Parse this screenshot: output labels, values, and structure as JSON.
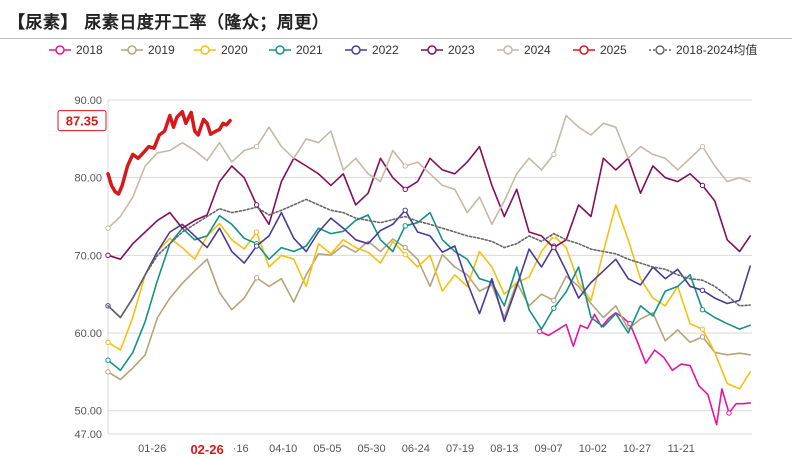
{
  "title": "【尿素】 尿素日度开工率（隆众；周更）",
  "chart_data": {
    "type": "line",
    "title": "【尿素】 尿素日度开工率（隆众；周更）",
    "xlabel": "",
    "ylabel": "",
    "ylim": [
      47,
      90
    ],
    "y_ticks": [
      "90.00",
      "80.00",
      "70.00",
      "60.00",
      "50.00",
      "47.00"
    ],
    "y_tick_values": [
      90,
      80,
      70,
      60,
      50,
      47
    ],
    "x_ticks": [
      "01-26",
      "02-26",
      "·16",
      "04-10",
      "05-05",
      "05-30",
      "06-24",
      "07-19",
      "08-13",
      "09-07",
      "10-02",
      "10-27",
      "11-21"
    ],
    "x_tick_day": [
      26,
      57,
      76,
      100,
      125,
      150,
      175,
      200,
      225,
      250,
      275,
      300,
      325
    ],
    "x_domain_day": [
      1,
      365
    ],
    "highlight_tick": "02-26",
    "callout": {
      "label": "87.35",
      "value": 87.35
    },
    "series": [
      {
        "name": "2018",
        "color": "#e6159b",
        "dash": "",
        "markers": true,
        "x": [
          245,
          250,
          255,
          260,
          264,
          268,
          272,
          276,
          280,
          284,
          288,
          292,
          296,
          300,
          305,
          310,
          315,
          320,
          325,
          330,
          335,
          340,
          345,
          348,
          352,
          356,
          360,
          364
        ],
        "y": [
          60.2,
          59.7,
          60.4,
          61.1,
          58.3,
          61.0,
          60.6,
          62.4,
          60.8,
          61.9,
          62.6,
          62.0,
          61.2,
          59.0,
          56.1,
          57.8,
          56.9,
          55.2,
          56.0,
          55.8,
          53.2,
          52.1,
          48.2,
          52.8,
          49.7,
          50.9,
          50.9,
          51.0
        ]
      },
      {
        "name": "2019",
        "color": "#b5a47a",
        "dash": "",
        "markers": true,
        "x": [
          1,
          8,
          15,
          22,
          29,
          36,
          43,
          50,
          57,
          64,
          71,
          78,
          85,
          92,
          99,
          106,
          113,
          120,
          127,
          134,
          141,
          148,
          155,
          162,
          169,
          176,
          183,
          190,
          197,
          204,
          211,
          218,
          225,
          232,
          239,
          246,
          253,
          260,
          267,
          274,
          281,
          288,
          295,
          302,
          309,
          316,
          323,
          330,
          337,
          344,
          351,
          358,
          364
        ],
        "y": [
          55.0,
          54.0,
          55.5,
          57.2,
          62.0,
          64.5,
          66.4,
          68.0,
          69.5,
          65.2,
          63.0,
          64.5,
          67.1,
          66.0,
          67.0,
          64.0,
          67.5,
          70.2,
          70.0,
          71.3,
          70.4,
          71.8,
          70.5,
          72.1,
          71.0,
          69.5,
          66.0,
          70.1,
          68.5,
          67.5,
          65.4,
          66.2,
          62.0,
          66.5,
          63.5,
          65.0,
          64.2,
          67.3,
          66.0,
          63.8,
          62.0,
          63.5,
          60.5,
          61.8,
          62.6,
          59.0,
          60.4,
          58.8,
          59.5,
          57.5,
          57.2,
          57.4,
          57.2
        ]
      },
      {
        "name": "2020",
        "color": "#f5c012",
        "dash": "",
        "markers": true,
        "x": [
          1,
          8,
          15,
          22,
          29,
          36,
          43,
          50,
          57,
          64,
          71,
          78,
          85,
          92,
          99,
          106,
          113,
          120,
          127,
          134,
          141,
          148,
          155,
          162,
          169,
          176,
          183,
          190,
          197,
          204,
          211,
          218,
          225,
          232,
          239,
          246,
          253,
          260,
          267,
          274,
          281,
          288,
          295,
          302,
          309,
          316,
          323,
          330,
          337,
          344,
          351,
          358,
          364
        ],
        "y": [
          58.8,
          57.8,
          62.0,
          67.5,
          70.5,
          72.2,
          71.0,
          69.5,
          72.5,
          74.1,
          72.0,
          70.8,
          73.0,
          68.5,
          70.0,
          69.5,
          66.0,
          71.5,
          70.2,
          72.0,
          71.0,
          70.4,
          69.0,
          71.8,
          70.1,
          68.5,
          70.0,
          65.4,
          67.5,
          66.0,
          70.5,
          68.5,
          65.0,
          66.5,
          67.2,
          70.5,
          72.5,
          71.0,
          66.5,
          64.2,
          70.5,
          76.5,
          72.0,
          67.0,
          64.5,
          63.5,
          66.0,
          61.2,
          60.5,
          57.5,
          53.5,
          52.8,
          55.0
        ]
      },
      {
        "name": "2021",
        "color": "#139385",
        "dash": "",
        "markers": true,
        "x": [
          1,
          8,
          15,
          22,
          29,
          36,
          43,
          50,
          57,
          64,
          71,
          78,
          85,
          92,
          99,
          106,
          113,
          120,
          127,
          134,
          141,
          148,
          155,
          162,
          169,
          176,
          183,
          190,
          197,
          204,
          211,
          218,
          225,
          232,
          239,
          246,
          253,
          260,
          267,
          274,
          281,
          288,
          295,
          302,
          309,
          316,
          323,
          330,
          337,
          344,
          351,
          358,
          364
        ],
        "y": [
          56.5,
          55.2,
          57.5,
          61.5,
          66.8,
          71.5,
          73.5,
          72.0,
          72.5,
          75.1,
          74.0,
          72.2,
          71.5,
          69.5,
          71.0,
          70.5,
          71.2,
          73.5,
          72.8,
          73.1,
          74.5,
          75.2,
          72.0,
          70.5,
          73.8,
          74.2,
          75.5,
          72.0,
          70.5,
          69.5,
          67.0,
          66.5,
          63.5,
          68.5,
          63.0,
          60.5,
          63.2,
          65.3,
          68.5,
          62.0,
          60.8,
          62.5,
          60.0,
          63.5,
          62.2,
          65.4,
          66.0,
          67.5,
          63.0,
          62.0,
          61.2,
          60.5,
          61.0
        ]
      },
      {
        "name": "2022",
        "color": "#4b3a96",
        "dash": "",
        "markers": true,
        "x": [
          1,
          8,
          15,
          22,
          29,
          36,
          43,
          50,
          57,
          64,
          71,
          78,
          85,
          92,
          99,
          106,
          113,
          120,
          127,
          134,
          141,
          148,
          155,
          162,
          169,
          176,
          183,
          190,
          197,
          204,
          211,
          218,
          225,
          232,
          239,
          246,
          253,
          260,
          267,
          274,
          281,
          288,
          295,
          302,
          309,
          316,
          323,
          330,
          337,
          344,
          351,
          358,
          364
        ],
        "y": [
          63.5,
          62.0,
          64.5,
          67.5,
          70.5,
          73.0,
          74.0,
          72.5,
          71.0,
          73.5,
          70.5,
          69.0,
          71.2,
          72.5,
          75.5,
          72.2,
          70.5,
          73.0,
          74.8,
          73.5,
          72.0,
          71.5,
          73.2,
          74.0,
          75.8,
          73.0,
          72.5,
          70.4,
          71.2,
          66.5,
          62.5,
          67.0,
          61.5,
          66.0,
          70.8,
          68.5,
          71.2,
          68.0,
          64.5,
          66.5,
          68.0,
          69.5,
          67.0,
          66.2,
          68.5,
          67.0,
          68.2,
          66.0,
          65.5,
          64.5,
          63.8,
          64.2,
          68.6
        ]
      },
      {
        "name": "2023",
        "color": "#830f5c",
        "dash": "",
        "markers": true,
        "x": [
          1,
          8,
          15,
          22,
          29,
          36,
          43,
          50,
          57,
          64,
          71,
          78,
          85,
          92,
          99,
          106,
          113,
          120,
          127,
          134,
          141,
          148,
          155,
          162,
          169,
          176,
          183,
          190,
          197,
          204,
          211,
          218,
          225,
          232,
          239,
          246,
          253,
          260,
          267,
          274,
          281,
          288,
          295,
          302,
          309,
          316,
          323,
          330,
          337,
          344,
          351,
          358,
          364
        ],
        "y": [
          70.0,
          69.5,
          71.5,
          73.0,
          74.5,
          75.5,
          73.5,
          74.5,
          75.2,
          79.5,
          81.5,
          80.0,
          76.5,
          74.0,
          79.5,
          82.5,
          81.5,
          80.5,
          79.0,
          80.5,
          76.5,
          78.0,
          82.5,
          80.0,
          78.5,
          79.5,
          82.5,
          81.0,
          80.5,
          82.0,
          84.0,
          79.0,
          75.0,
          78.5,
          73.0,
          72.5,
          71.0,
          72.0,
          76.5,
          75.0,
          82.5,
          81.0,
          82.5,
          78.0,
          81.5,
          80.0,
          79.5,
          80.5,
          79.0,
          77.0,
          72.0,
          70.5,
          72.5
        ]
      },
      {
        "name": "2024",
        "color": "#c6b9a6",
        "dash": "",
        "markers": true,
        "x": [
          1,
          8,
          15,
          22,
          29,
          36,
          43,
          50,
          57,
          64,
          71,
          78,
          85,
          92,
          99,
          106,
          113,
          120,
          127,
          134,
          141,
          148,
          155,
          162,
          169,
          176,
          183,
          190,
          197,
          204,
          211,
          218,
          225,
          232,
          239,
          246,
          253,
          260,
          267,
          274,
          281,
          288,
          295,
          302,
          309,
          316,
          323,
          330,
          337,
          344,
          351,
          358,
          364
        ],
        "y": [
          73.5,
          75.0,
          77.5,
          81.5,
          83.2,
          83.5,
          84.5,
          83.5,
          82.2,
          84.5,
          82.0,
          83.5,
          84.0,
          86.5,
          84.0,
          82.5,
          85.0,
          84.5,
          86.0,
          81.0,
          82.5,
          80.5,
          79.5,
          83.5,
          81.5,
          82.0,
          80.5,
          79.0,
          78.5,
          75.5,
          77.5,
          74.0,
          77.0,
          80.5,
          82.5,
          81.0,
          83.0,
          88.0,
          86.5,
          85.5,
          87.0,
          86.5,
          82.5,
          84.0,
          83.0,
          82.5,
          81.0,
          82.5,
          84.0,
          81.5,
          79.5,
          80.0,
          79.5
        ]
      },
      {
        "name": "2025",
        "color": "#d7191c",
        "dash": "",
        "markers": false,
        "width": 3.5,
        "x": [
          1,
          3,
          5,
          7,
          9,
          12,
          15,
          18,
          21,
          24,
          27,
          30,
          33,
          36,
          38,
          40,
          43,
          45,
          48,
          50,
          52,
          55,
          57,
          59,
          62,
          64,
          66,
          68,
          70
        ],
        "y": [
          80.5,
          79.0,
          78.2,
          77.9,
          79.0,
          81.5,
          83.0,
          82.5,
          83.2,
          84.0,
          83.8,
          85.5,
          86.0,
          88.0,
          86.5,
          87.8,
          88.5,
          87.0,
          88.4,
          86.0,
          85.5,
          87.5,
          87.0,
          85.6,
          86.0,
          86.2,
          87.0,
          86.8,
          87.35
        ]
      },
      {
        "name": "2018-2024均值",
        "color": "#666666",
        "dash": "2,2",
        "markers": false,
        "x": [
          1,
          8,
          15,
          22,
          29,
          36,
          43,
          50,
          57,
          64,
          71,
          78,
          85,
          92,
          99,
          106,
          113,
          120,
          127,
          134,
          141,
          148,
          155,
          162,
          169,
          176,
          183,
          190,
          197,
          204,
          211,
          218,
          225,
          232,
          239,
          246,
          253,
          260,
          267,
          274,
          281,
          288,
          295,
          302,
          309,
          316,
          323,
          330,
          337,
          344,
          351,
          358,
          364
        ],
        "y": [
          63.5,
          62.0,
          64.5,
          67.5,
          70.0,
          71.5,
          73.0,
          74.0,
          75.0,
          76.0,
          75.5,
          75.8,
          76.2,
          75.2,
          75.8,
          76.5,
          77.2,
          76.5,
          75.8,
          75.5,
          74.8,
          74.5,
          74.2,
          74.6,
          75.0,
          74.4,
          74.0,
          73.5,
          73.0,
          72.5,
          72.2,
          71.8,
          71.0,
          71.5,
          72.5,
          71.8,
          72.8,
          72.0,
          71.5,
          70.8,
          70.5,
          70.2,
          69.5,
          69.0,
          68.5,
          68.2,
          67.5,
          67.0,
          66.8,
          66.0,
          64.8,
          63.5,
          63.6
        ]
      }
    ]
  }
}
